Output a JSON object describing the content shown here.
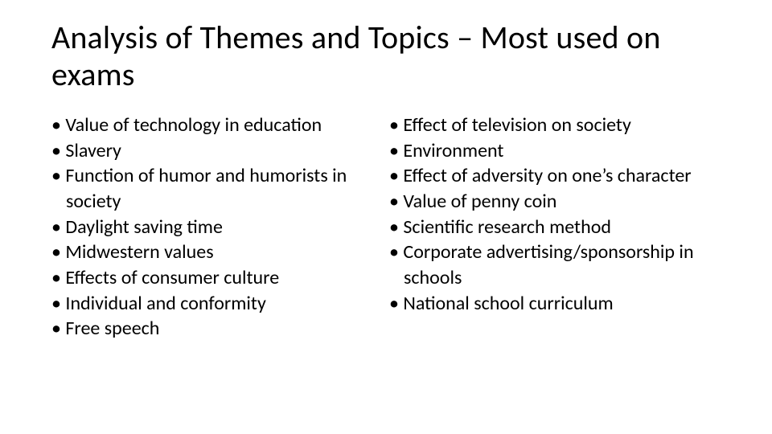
{
  "title": "Analysis of Themes and Topics – Most used on exams",
  "colors": {
    "background": "#ffffff",
    "text": "#000000"
  },
  "typography": {
    "title_fontsize": 40,
    "body_fontsize": 24,
    "font_family": "Calibri"
  },
  "left_items": [
    "Value of technology in education",
    "Slavery",
    "Function of humor and humorists in society",
    "Daylight saving time",
    "Midwestern values",
    "Effects of consumer culture",
    "Individual and conformity",
    "Free speech"
  ],
  "right_items": [
    "Effect of television on society",
    "Environment",
    "Effect of adversity on one’s character",
    "Value of penny coin",
    "Scientific research method",
    "Corporate advertising/sponsorship in schools",
    "National school curriculum"
  ]
}
